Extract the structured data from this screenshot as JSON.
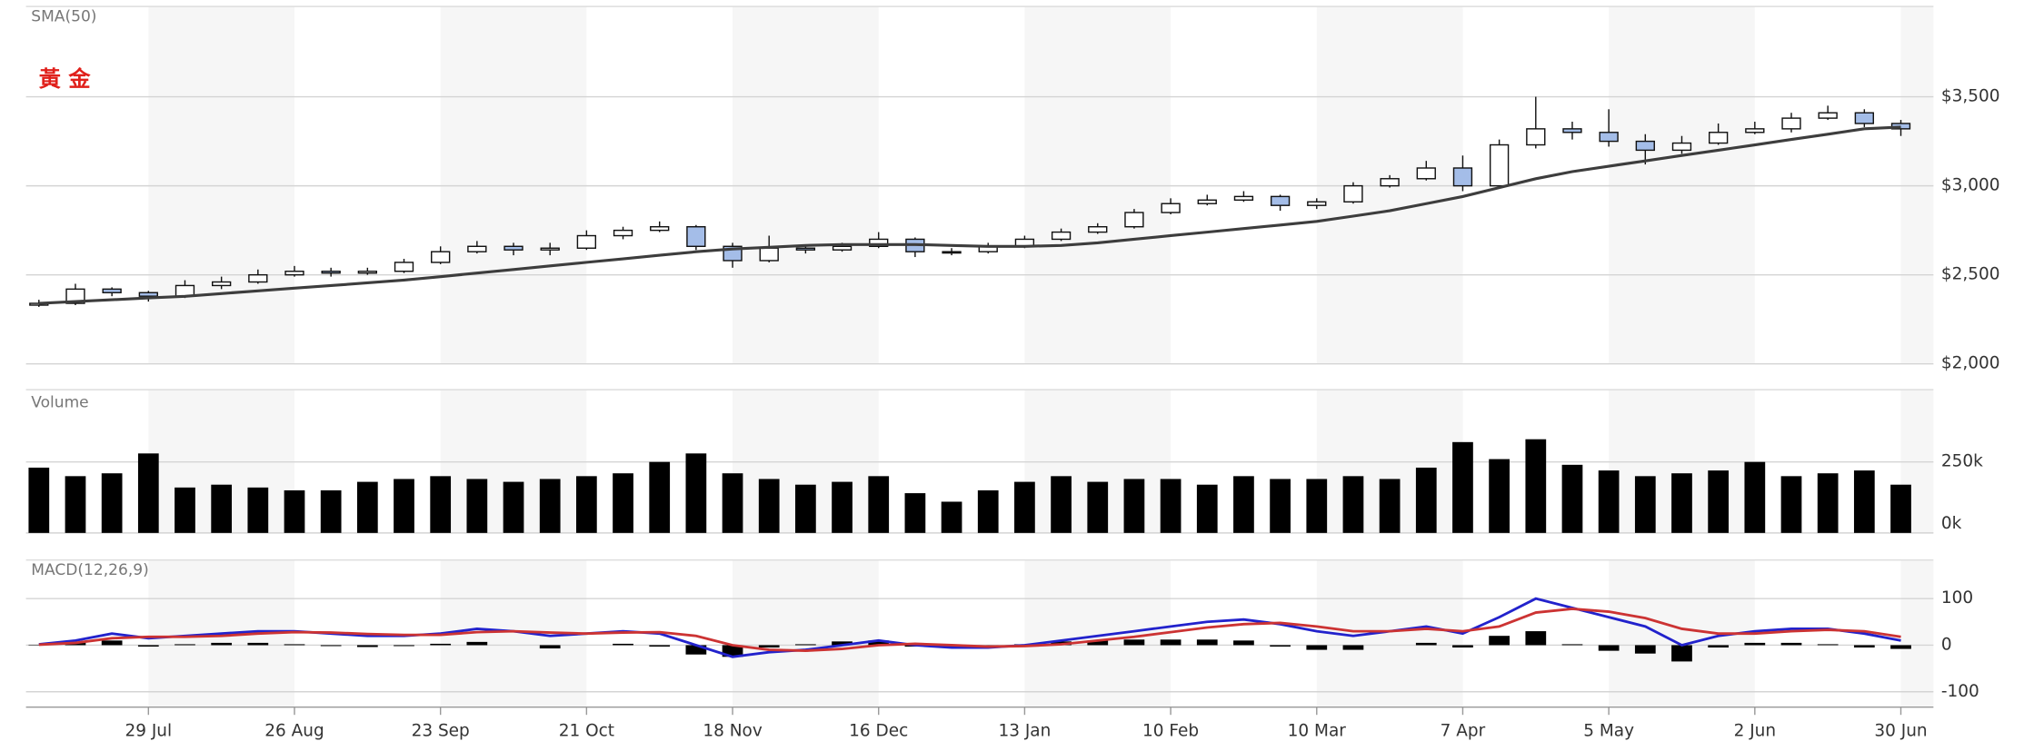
{
  "chart_data": [
    {
      "type": "candlestick",
      "title": "黃 金",
      "open": [
        2330,
        2340,
        2420,
        2400,
        2380,
        2440,
        2460,
        2500,
        2520,
        2510,
        2520,
        2570,
        2630,
        2660,
        2640,
        2650,
        2720,
        2750,
        2770,
        2660,
        2580,
        2650,
        2640,
        2660,
        2700,
        2630,
        2630,
        2660,
        2700,
        2740,
        2770,
        2850,
        2900,
        2920,
        2940,
        2890,
        2910,
        3000,
        3040,
        3100,
        3000,
        3230,
        3320,
        3300,
        3250,
        3200,
        3240,
        3300,
        3320,
        3380,
        3410,
        3350
      ],
      "high": [
        2360,
        2450,
        2430,
        2410,
        2470,
        2490,
        2530,
        2550,
        2540,
        2540,
        2590,
        2660,
        2690,
        2680,
        2680,
        2750,
        2770,
        2800,
        2780,
        2680,
        2720,
        2670,
        2680,
        2740,
        2710,
        2650,
        2680,
        2720,
        2760,
        2790,
        2870,
        2930,
        2950,
        2970,
        2950,
        2930,
        3020,
        3060,
        3140,
        3170,
        3260,
        3500,
        3360,
        3430,
        3290,
        3280,
        3350,
        3360,
        3410,
        3450,
        3430,
        3370
      ],
      "low": [
        2320,
        2330,
        2380,
        2350,
        2370,
        2420,
        2450,
        2490,
        2490,
        2500,
        2510,
        2560,
        2620,
        2610,
        2610,
        2640,
        2700,
        2740,
        2640,
        2540,
        2570,
        2620,
        2630,
        2650,
        2600,
        2610,
        2620,
        2650,
        2690,
        2730,
        2760,
        2840,
        2890,
        2910,
        2860,
        2870,
        2900,
        2990,
        3030,
        2970,
        2990,
        3210,
        3260,
        3220,
        3120,
        3180,
        3230,
        3290,
        3300,
        3370,
        3330,
        3280
      ],
      "close": [
        2340,
        2420,
        2400,
        2380,
        2440,
        2460,
        2500,
        2520,
        2510,
        2520,
        2570,
        2630,
        2660,
        2640,
        2650,
        2720,
        2750,
        2770,
        2660,
        2580,
        2650,
        2640,
        2660,
        2700,
        2630,
        2630,
        2660,
        2700,
        2740,
        2770,
        2850,
        2900,
        2920,
        2940,
        2890,
        2910,
        3000,
        3040,
        3100,
        3000,
        3230,
        3320,
        3300,
        3250,
        3200,
        3240,
        3300,
        3320,
        3380,
        3410,
        3350,
        3320
      ],
      "up_color": "#ffffff",
      "down_color": "#a4bde8",
      "series": [
        {
          "name": "SMA(50)",
          "color": "#3d3d3d",
          "values": [
            2340,
            2350,
            2360,
            2370,
            2380,
            2395,
            2410,
            2425,
            2440,
            2455,
            2470,
            2490,
            2510,
            2530,
            2550,
            2570,
            2590,
            2610,
            2630,
            2645,
            2655,
            2665,
            2670,
            2670,
            2670,
            2665,
            2660,
            2660,
            2665,
            2680,
            2700,
            2720,
            2740,
            2760,
            2780,
            2800,
            2830,
            2860,
            2900,
            2940,
            2990,
            3040,
            3080,
            3110,
            3140,
            3170,
            3200,
            3230,
            3260,
            3290,
            3320,
            3330
          ]
        }
      ],
      "ylim": [
        2000,
        4000
      ],
      "yticks": [
        {
          "value": 2000,
          "label": "$2,000"
        },
        {
          "value": 2500,
          "label": "$2,500"
        },
        {
          "value": 3000,
          "label": "$3,000"
        },
        {
          "value": 3500,
          "label": "$3,500"
        }
      ],
      "grid": true
    },
    {
      "type": "bar",
      "title": "Volume",
      "color": "#000000",
      "values": [
        230000,
        200000,
        210000,
        280000,
        160000,
        170000,
        160000,
        150000,
        150000,
        180000,
        190000,
        200000,
        190000,
        180000,
        190000,
        200000,
        210000,
        250000,
        280000,
        210000,
        190000,
        170000,
        180000,
        200000,
        140000,
        110000,
        150000,
        180000,
        200000,
        180000,
        190000,
        190000,
        170000,
        200000,
        190000,
        190000,
        200000,
        190000,
        230000,
        320000,
        260000,
        330000,
        240000,
        220000,
        200000,
        210000,
        220000,
        250000,
        200000,
        210000,
        220000,
        170000
      ],
      "ylim": [
        0,
        500000
      ],
      "yticks": [
        {
          "value": 0,
          "label": "0k"
        },
        {
          "value": 250000,
          "label": "250k"
        }
      ],
      "grid": true
    },
    {
      "type": "macd",
      "title": "MACD(12,26,9)",
      "categories": [
        null,
        null,
        null,
        "29 Jul",
        null,
        null,
        null,
        "26 Aug",
        null,
        null,
        null,
        "23 Sep",
        null,
        null,
        null,
        "21 Oct",
        null,
        null,
        null,
        "18 Nov",
        null,
        null,
        null,
        "16 Dec",
        null,
        null,
        null,
        "13 Jan",
        null,
        null,
        null,
        "10 Feb",
        null,
        null,
        null,
        "10 Mar",
        null,
        null,
        null,
        "7 Apr",
        null,
        null,
        null,
        "5 May",
        null,
        null,
        null,
        "2 Jun",
        null,
        null,
        null,
        "30 Jun"
      ],
      "series": [
        {
          "color": "#2222cc",
          "values": [
            2,
            10,
            25,
            15,
            20,
            25,
            30,
            30,
            25,
            20,
            20,
            25,
            35,
            30,
            20,
            25,
            30,
            25,
            0,
            -25,
            -15,
            -10,
            0,
            10,
            0,
            -5,
            -5,
            0,
            10,
            20,
            30,
            40,
            50,
            55,
            45,
            30,
            20,
            30,
            40,
            25,
            60,
            100,
            80,
            60,
            40,
            0,
            20,
            30,
            35,
            35,
            25,
            10
          ]
        },
        {
          "color": "#cc3333",
          "values": [
            1,
            5,
            15,
            18,
            18,
            20,
            25,
            28,
            27,
            24,
            22,
            22,
            28,
            30,
            27,
            25,
            27,
            28,
            20,
            0,
            -10,
            -12,
            -8,
            0,
            3,
            0,
            -3,
            -2,
            2,
            10,
            18,
            28,
            38,
            45,
            48,
            40,
            30,
            30,
            35,
            30,
            40,
            70,
            78,
            72,
            58,
            35,
            25,
            25,
            30,
            33,
            30,
            18
          ]
        }
      ],
      "histogram": {
        "color": "#000000",
        "values": [
          1,
          5,
          10,
          -3,
          2,
          5,
          5,
          2,
          -2,
          -4,
          -2,
          3,
          7,
          0,
          -7,
          0,
          3,
          -3,
          -20,
          -25,
          -5,
          2,
          8,
          10,
          -3,
          -5,
          -2,
          2,
          8,
          10,
          12,
          12,
          12,
          10,
          -3,
          -10,
          -10,
          0,
          5,
          -5,
          20,
          30,
          2,
          -12,
          -18,
          -35,
          -5,
          5,
          5,
          2,
          -5,
          -8
        ]
      },
      "ylim": [
        -133,
        180
      ],
      "yticks": [
        -100,
        0,
        100
      ],
      "grid": true
    }
  ]
}
